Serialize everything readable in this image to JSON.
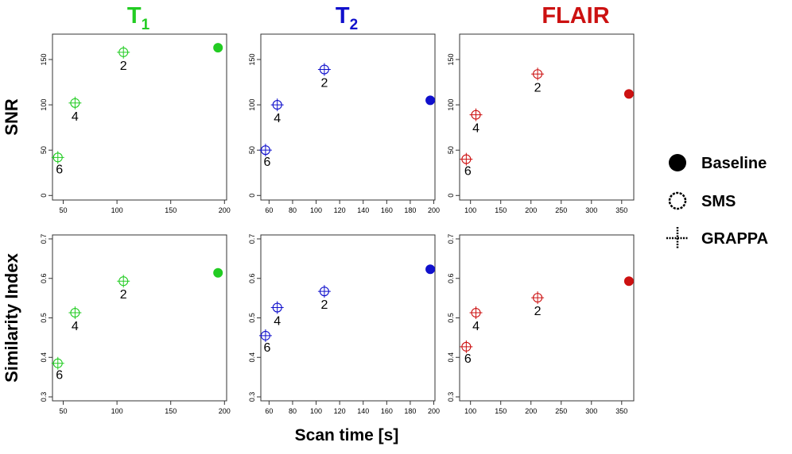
{
  "figure": {
    "xlabel": "Scan time [s]",
    "row_labels": [
      "SNR",
      "Similarity Index"
    ],
    "legend": [
      {
        "label": "Baseline",
        "symbol": "filled-circle"
      },
      {
        "label": "SMS",
        "symbol": "open-circle"
      },
      {
        "label": "GRAPPA",
        "symbol": "cross"
      }
    ]
  },
  "columns": [
    {
      "title_main": "T",
      "title_sub": "1",
      "color": "#22cc22",
      "xticks": [
        50,
        100,
        150,
        200
      ],
      "xlim": [
        40,
        202
      ]
    },
    {
      "title_main": "T",
      "title_sub": "2",
      "color": "#1010cc",
      "xticks": [
        60,
        80,
        100,
        120,
        140,
        160,
        180,
        200
      ],
      "xlim": [
        53,
        201
      ]
    },
    {
      "title_main": "FLAIR",
      "title_sub": "",
      "color": "#cc1111",
      "xticks": [
        100,
        150,
        200,
        250,
        300,
        350
      ],
      "xlim": [
        82,
        370
      ]
    }
  ],
  "chart_data": [
    {
      "type": "scatter",
      "title": "T1",
      "xlabel": "",
      "ylabel": "SNR",
      "ylim": [
        -5,
        178
      ],
      "yticks": [
        0,
        50,
        100,
        150
      ],
      "baseline": {
        "x": 194,
        "y": 163
      },
      "points": [
        {
          "x": 106,
          "y": 158,
          "label": "2"
        },
        {
          "x": 61,
          "y": 102,
          "label": "4"
        },
        {
          "x": 45,
          "y": 42,
          "label": "6"
        }
      ]
    },
    {
      "type": "scatter",
      "title": "T2",
      "xlabel": "",
      "ylabel": "SNR",
      "ylim": [
        -5,
        178
      ],
      "yticks": [
        0,
        50,
        100,
        150
      ],
      "baseline": {
        "x": 197,
        "y": 105
      },
      "points": [
        {
          "x": 107,
          "y": 139,
          "label": "2"
        },
        {
          "x": 67,
          "y": 100,
          "label": "4"
        },
        {
          "x": 57,
          "y": 50,
          "label": "6"
        }
      ]
    },
    {
      "type": "scatter",
      "title": "FLAIR",
      "xlabel": "",
      "ylabel": "SNR",
      "ylim": [
        -5,
        178
      ],
      "yticks": [
        0,
        50,
        100,
        150
      ],
      "baseline": {
        "x": 362,
        "y": 112
      },
      "points": [
        {
          "x": 211,
          "y": 134,
          "label": "2"
        },
        {
          "x": 109,
          "y": 89,
          "label": "4"
        },
        {
          "x": 93,
          "y": 40,
          "label": "6"
        }
      ]
    },
    {
      "type": "scatter",
      "title": "T1",
      "xlabel": "",
      "ylabel": "Similarity Index",
      "ylim": [
        0.29,
        0.71
      ],
      "yticks": [
        0.3,
        0.4,
        0.5,
        0.6,
        0.7
      ],
      "baseline": {
        "x": 194,
        "y": 0.614
      },
      "points": [
        {
          "x": 106,
          "y": 0.593,
          "label": "2"
        },
        {
          "x": 61,
          "y": 0.513,
          "label": "4"
        },
        {
          "x": 45,
          "y": 0.385,
          "label": "6"
        }
      ]
    },
    {
      "type": "scatter",
      "title": "T2",
      "xlabel": "Scan time [s]",
      "ylabel": "Similarity Index",
      "ylim": [
        0.29,
        0.71
      ],
      "yticks": [
        0.3,
        0.4,
        0.5,
        0.6,
        0.7
      ],
      "baseline": {
        "x": 197,
        "y": 0.623
      },
      "points": [
        {
          "x": 107,
          "y": 0.567,
          "label": "2"
        },
        {
          "x": 67,
          "y": 0.526,
          "label": "4"
        },
        {
          "x": 57,
          "y": 0.455,
          "label": "6"
        }
      ]
    },
    {
      "type": "scatter",
      "title": "FLAIR",
      "xlabel": "",
      "ylabel": "Similarity Index",
      "ylim": [
        0.29,
        0.71
      ],
      "yticks": [
        0.3,
        0.4,
        0.5,
        0.6,
        0.7
      ],
      "baseline": {
        "x": 362,
        "y": 0.593
      },
      "points": [
        {
          "x": 211,
          "y": 0.551,
          "label": "2"
        },
        {
          "x": 109,
          "y": 0.513,
          "label": "4"
        },
        {
          "x": 93,
          "y": 0.427,
          "label": "6"
        }
      ]
    }
  ]
}
